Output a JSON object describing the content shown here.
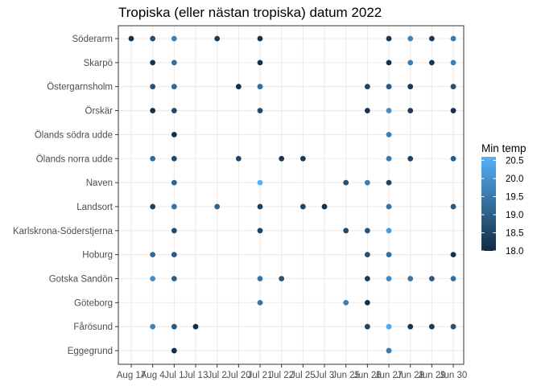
{
  "chart_data": {
    "type": "scatter",
    "title": "Tropiska (eller nästan tropiska) datum 2022",
    "xlabel": "",
    "ylabel": "",
    "x_categories": [
      "Aug 17",
      "Aug 4",
      "Jul 1",
      "Jul 13",
      "Jul 2",
      "Jul 20",
      "Jul 21",
      "Jul 22",
      "Jul 25",
      "Jul 3",
      "Jun 25",
      "Jun 26",
      "Jun 27",
      "Jun 28",
      "Jun 29",
      "Jun 30"
    ],
    "y_categories": [
      "Söderarm",
      "Skarpö",
      "Östergarnsholm",
      "Örskär",
      "Ölands södra udde",
      "Ölands norra udde",
      "Naven",
      "Landsort",
      "Karlskrona-Söderstjerna",
      "Hoburg",
      "Gotska Sandön",
      "Göteborg",
      "Fårösund",
      "Eggegrund"
    ],
    "legend": {
      "title": "Min temp",
      "position": "right",
      "ticks": [
        18.0,
        18.5,
        19.0,
        19.5,
        20.0,
        20.5
      ],
      "tick_labels": [
        "18.0",
        "18.5",
        "19.0",
        "19.5",
        "20.0",
        "20.5"
      ],
      "range": [
        18.0,
        20.6
      ]
    },
    "colors": {
      "low": "#132B43",
      "high": "#56B1F7"
    },
    "grid": true,
    "points": [
      {
        "x": "Aug 17",
        "y": "Söderarm",
        "value": 18.1
      },
      {
        "x": "Aug 4",
        "y": "Söderarm",
        "value": 18.6
      },
      {
        "x": "Jul 1",
        "y": "Söderarm",
        "value": 19.6
      },
      {
        "x": "Jul 2",
        "y": "Söderarm",
        "value": 18.3
      },
      {
        "x": "Jul 21",
        "y": "Söderarm",
        "value": 18.1
      },
      {
        "x": "Jun 27",
        "y": "Söderarm",
        "value": 18.2
      },
      {
        "x": "Jun 28",
        "y": "Söderarm",
        "value": 19.7
      },
      {
        "x": "Jun 29",
        "y": "Söderarm",
        "value": 18.3
      },
      {
        "x": "Jun 30",
        "y": "Söderarm",
        "value": 19.5
      },
      {
        "x": "Aug 4",
        "y": "Skarpö",
        "value": 18.2
      },
      {
        "x": "Jul 1",
        "y": "Skarpö",
        "value": 19.3
      },
      {
        "x": "Jul 21",
        "y": "Skarpö",
        "value": 18.1
      },
      {
        "x": "Jun 27",
        "y": "Skarpö",
        "value": 18.1
      },
      {
        "x": "Jun 28",
        "y": "Skarpö",
        "value": 19.6
      },
      {
        "x": "Jun 29",
        "y": "Skarpö",
        "value": 18.2
      },
      {
        "x": "Jun 30",
        "y": "Skarpö",
        "value": 19.6
      },
      {
        "x": "Aug 4",
        "y": "Östergarnsholm",
        "value": 18.8
      },
      {
        "x": "Jul 1",
        "y": "Östergarnsholm",
        "value": 19.2
      },
      {
        "x": "Jul 20",
        "y": "Östergarnsholm",
        "value": 18.1
      },
      {
        "x": "Jul 21",
        "y": "Östergarnsholm",
        "value": 19.3
      },
      {
        "x": "Jun 26",
        "y": "Östergarnsholm",
        "value": 18.5
      },
      {
        "x": "Jun 27",
        "y": "Östergarnsholm",
        "value": 18.9
      },
      {
        "x": "Jun 28",
        "y": "Östergarnsholm",
        "value": 18.2
      },
      {
        "x": "Jun 30",
        "y": "Östergarnsholm",
        "value": 18.7
      },
      {
        "x": "Aug 4",
        "y": "Örskär",
        "value": 18.1
      },
      {
        "x": "Jul 1",
        "y": "Örskär",
        "value": 18.6
      },
      {
        "x": "Jul 21",
        "y": "Örskär",
        "value": 18.6
      },
      {
        "x": "Jun 26",
        "y": "Örskär",
        "value": 18.2
      },
      {
        "x": "Jun 27",
        "y": "Örskär",
        "value": 19.9
      },
      {
        "x": "Jun 28",
        "y": "Örskär",
        "value": 18.3
      },
      {
        "x": "Jun 30",
        "y": "Örskär",
        "value": 18.1
      },
      {
        "x": "Jul 1",
        "y": "Ölands södra udde",
        "value": 18.1
      },
      {
        "x": "Jun 27",
        "y": "Ölands södra udde",
        "value": 19.6
      },
      {
        "x": "Aug 4",
        "y": "Ölands norra udde",
        "value": 19.2
      },
      {
        "x": "Jul 1",
        "y": "Ölands norra udde",
        "value": 18.6
      },
      {
        "x": "Jul 20",
        "y": "Ölands norra udde",
        "value": 18.5
      },
      {
        "x": "Jul 22",
        "y": "Ölands norra udde",
        "value": 18.2
      },
      {
        "x": "Jul 25",
        "y": "Ölands norra udde",
        "value": 18.3
      },
      {
        "x": "Jun 27",
        "y": "Ölands norra udde",
        "value": 19.5
      },
      {
        "x": "Jun 28",
        "y": "Ölands norra udde",
        "value": 18.5
      },
      {
        "x": "Jun 30",
        "y": "Ölands norra udde",
        "value": 18.9
      },
      {
        "x": "Jul 1",
        "y": "Naven",
        "value": 19.1
      },
      {
        "x": "Jul 21",
        "y": "Naven",
        "value": 20.6
      },
      {
        "x": "Jun 25",
        "y": "Naven",
        "value": 18.7
      },
      {
        "x": "Jun 26",
        "y": "Naven",
        "value": 19.6
      },
      {
        "x": "Jun 27",
        "y": "Naven",
        "value": 18.5
      },
      {
        "x": "Aug 4",
        "y": "Landsort",
        "value": 18.4
      },
      {
        "x": "Jul 1",
        "y": "Landsort",
        "value": 19.4
      },
      {
        "x": "Jul 2",
        "y": "Landsort",
        "value": 19.1
      },
      {
        "x": "Jul 21",
        "y": "Landsort",
        "value": 18.4
      },
      {
        "x": "Jul 25",
        "y": "Landsort",
        "value": 18.5
      },
      {
        "x": "Jul 3",
        "y": "Landsort",
        "value": 18.1
      },
      {
        "x": "Jun 27",
        "y": "Landsort",
        "value": 19.4
      },
      {
        "x": "Jun 30",
        "y": "Landsort",
        "value": 18.9
      },
      {
        "x": "Jul 1",
        "y": "Karlskrona-Söderstjerna",
        "value": 18.6
      },
      {
        "x": "Jul 21",
        "y": "Karlskrona-Söderstjerna",
        "value": 18.5
      },
      {
        "x": "Jun 25",
        "y": "Karlskrona-Söderstjerna",
        "value": 18.6
      },
      {
        "x": "Jun 26",
        "y": "Karlskrona-Söderstjerna",
        "value": 18.8
      },
      {
        "x": "Jun 27",
        "y": "Karlskrona-Söderstjerna",
        "value": 20.2
      },
      {
        "x": "Aug 4",
        "y": "Hoburg",
        "value": 19.2
      },
      {
        "x": "Jul 1",
        "y": "Hoburg",
        "value": 18.9
      },
      {
        "x": "Jun 26",
        "y": "Hoburg",
        "value": 18.7
      },
      {
        "x": "Jun 27",
        "y": "Hoburg",
        "value": 19.3
      },
      {
        "x": "Jun 30",
        "y": "Hoburg",
        "value": 18.1
      },
      {
        "x": "Aug 4",
        "y": "Gotska Sandön",
        "value": 19.9
      },
      {
        "x": "Jul 1",
        "y": "Gotska Sandön",
        "value": 19.0
      },
      {
        "x": "Jul 21",
        "y": "Gotska Sandön",
        "value": 19.4
      },
      {
        "x": "Jul 22",
        "y": "Gotska Sandön",
        "value": 18.8
      },
      {
        "x": "Jun 26",
        "y": "Gotska Sandön",
        "value": 18.3
      },
      {
        "x": "Jun 27",
        "y": "Gotska Sandön",
        "value": 19.8
      },
      {
        "x": "Jun 28",
        "y": "Gotska Sandön",
        "value": 19.4
      },
      {
        "x": "Jun 29",
        "y": "Gotska Sandön",
        "value": 18.9
      },
      {
        "x": "Jun 30",
        "y": "Gotska Sandön",
        "value": 19.3
      },
      {
        "x": "Jul 21",
        "y": "Göteborg",
        "value": 19.4
      },
      {
        "x": "Jun 25",
        "y": "Göteborg",
        "value": 19.6
      },
      {
        "x": "Jun 26",
        "y": "Göteborg",
        "value": 18.1
      },
      {
        "x": "Aug 4",
        "y": "Fårösund",
        "value": 19.7
      },
      {
        "x": "Jul 1",
        "y": "Fårösund",
        "value": 18.9
      },
      {
        "x": "Jul 13",
        "y": "Fårösund",
        "value": 18.1
      },
      {
        "x": "Jun 26",
        "y": "Fårösund",
        "value": 18.5
      },
      {
        "x": "Jun 27",
        "y": "Fårösund",
        "value": 20.4
      },
      {
        "x": "Jun 28",
        "y": "Fårösund",
        "value": 18.2
      },
      {
        "x": "Jun 29",
        "y": "Fårösund",
        "value": 18.3
      },
      {
        "x": "Jun 30",
        "y": "Fårösund",
        "value": 18.8
      },
      {
        "x": "Jul 1",
        "y": "Eggegrund",
        "value": 18.1
      },
      {
        "x": "Jun 27",
        "y": "Eggegrund",
        "value": 19.5
      }
    ]
  }
}
